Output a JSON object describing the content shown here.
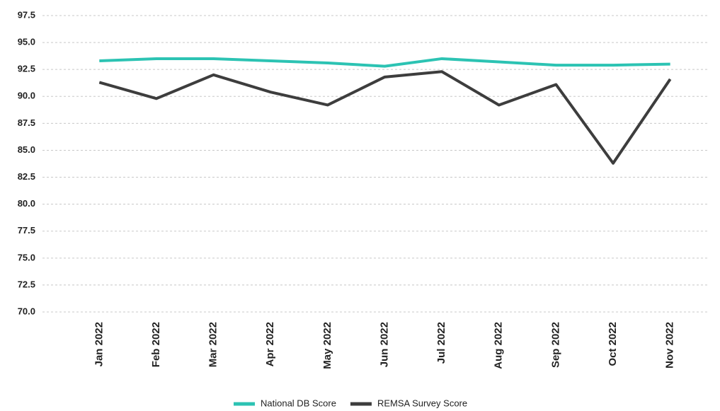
{
  "chart_data": {
    "type": "line",
    "categories": [
      "Jan 2022",
      "Feb 2022",
      "Mar 2022",
      "Apr 2022",
      "May 2022",
      "Jun 2022",
      "Jul 2022",
      "Aug 2022",
      "Sep 2022",
      "Oct 2022",
      "Nov 2022"
    ],
    "series": [
      {
        "name": "National DB Score",
        "color": "#2cc3b3",
        "values": [
          93.3,
          93.5,
          93.5,
          93.3,
          93.1,
          92.8,
          93.5,
          93.2,
          92.9,
          92.9,
          93.0
        ]
      },
      {
        "name": "REMSA Survey Score",
        "color": "#3d3d3d",
        "values": [
          91.3,
          89.8,
          92.0,
          90.4,
          89.2,
          91.8,
          92.3,
          89.2,
          91.1,
          83.8,
          91.6
        ]
      }
    ],
    "ylim": [
      70,
      97.5
    ],
    "yticks": [
      {
        "value": 70,
        "label": "70.0"
      },
      {
        "value": 72.5,
        "label": "72.5"
      },
      {
        "value": 75,
        "label": "75.0"
      },
      {
        "value": 77.5,
        "label": "77.5"
      },
      {
        "value": 80,
        "label": "80.0"
      },
      {
        "value": 82.5,
        "label": "82.5"
      },
      {
        "value": 85,
        "label": "85.0"
      },
      {
        "value": 87.5,
        "label": "87.5"
      },
      {
        "value": 90,
        "label": "90.0"
      },
      {
        "value": 92.5,
        "label": "92.5"
      },
      {
        "value": 95,
        "label": "95.0"
      },
      {
        "value": 97.5,
        "label": "97.5"
      }
    ],
    "grid": true,
    "legend": "bottom"
  }
}
